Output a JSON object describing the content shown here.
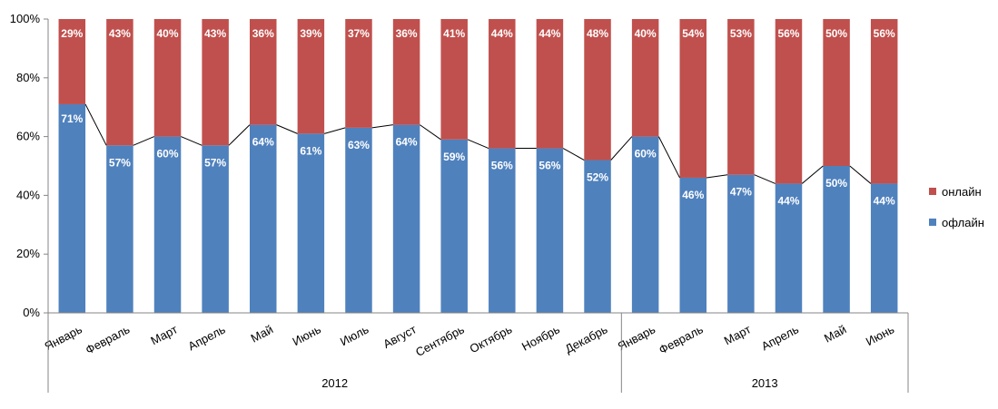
{
  "chart_data": {
    "type": "bar",
    "stacked": true,
    "percent": true,
    "categories": [
      "Январь",
      "Февраль",
      "Март",
      "Апрель",
      "Май",
      "Июнь",
      "Июль",
      "Август",
      "Сентябрь",
      "Октябрь",
      "Ноябрь",
      "Декабрь",
      "Январь",
      "Февраль",
      "Март",
      "Апрель",
      "Май",
      "Июнь"
    ],
    "groups": [
      {
        "label": "2012",
        "count": 12
      },
      {
        "label": "2013",
        "count": 6
      }
    ],
    "series": [
      {
        "name": "офлайн",
        "color": "#4F81BD",
        "values": [
          71,
          57,
          60,
          57,
          64,
          61,
          63,
          64,
          59,
          56,
          56,
          52,
          60,
          46,
          47,
          44,
          50,
          44
        ]
      },
      {
        "name": "онлайн",
        "color": "#C0504D",
        "values": [
          29,
          43,
          40,
          43,
          36,
          39,
          37,
          36,
          41,
          44,
          44,
          48,
          40,
          54,
          53,
          56,
          50,
          56
        ]
      }
    ],
    "ylim": [
      0,
      100
    ],
    "yticks": [
      "0%",
      "20%",
      "40%",
      "60%",
      "80%",
      "100%"
    ],
    "data_label_suffix": "%",
    "connector_line": true,
    "grid": false,
    "legend_position": "right"
  }
}
